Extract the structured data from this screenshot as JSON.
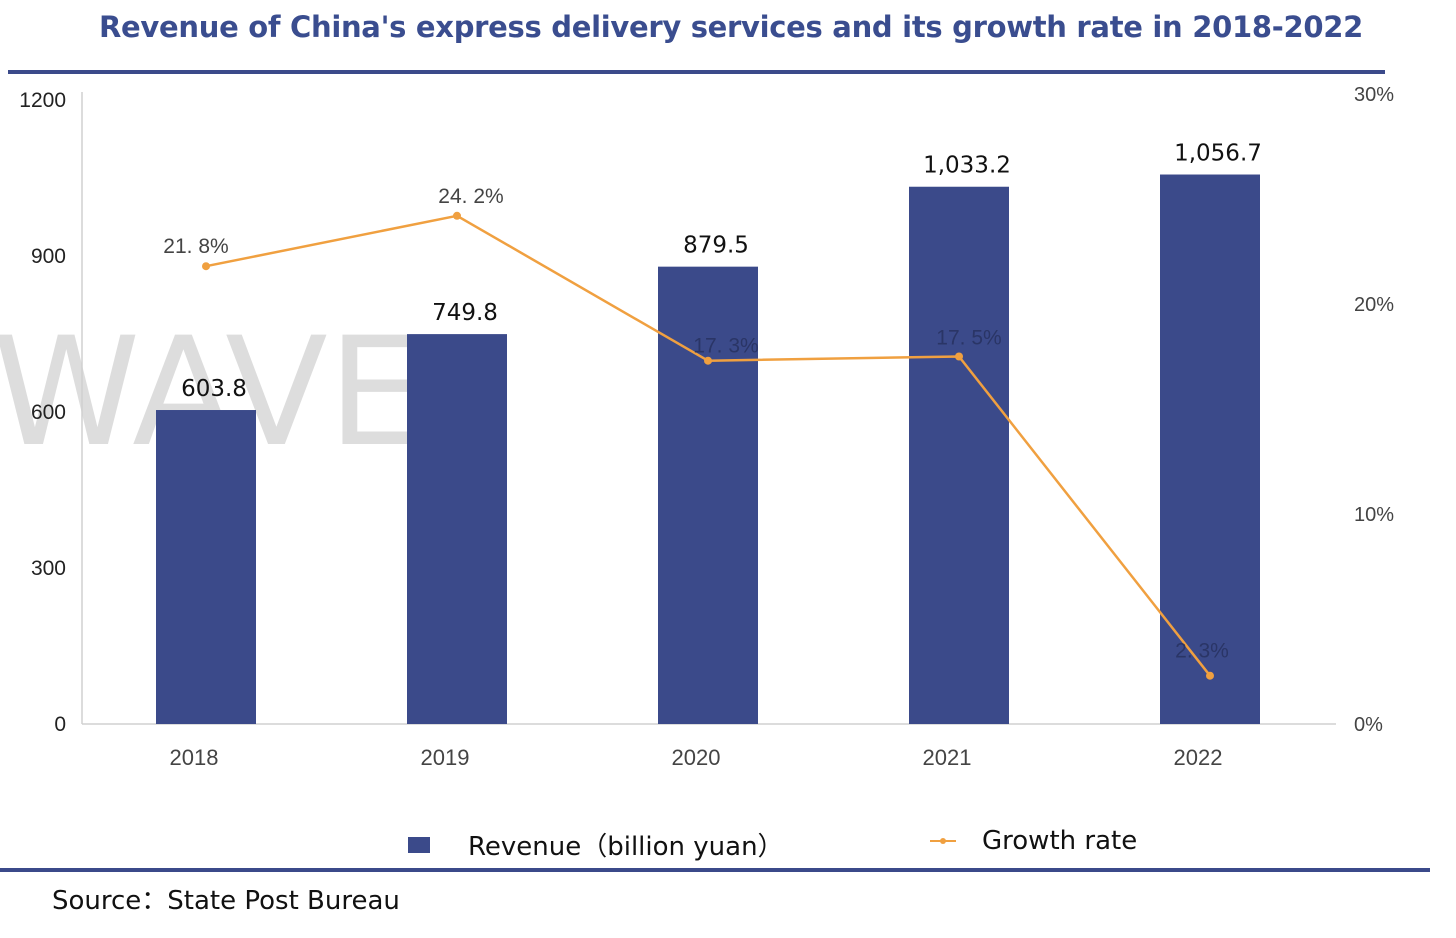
{
  "chart_data": {
    "type": "bar",
    "title": "Revenue of China's express delivery services and its growth rate in 2018-2022",
    "categories": [
      "2018",
      "2019",
      "2020",
      "2021",
      "2022"
    ],
    "series": [
      {
        "name": "Revenue（billion yuan）",
        "type": "bar",
        "axis": "left",
        "values": [
          603.8,
          749.8,
          879.5,
          1033.2,
          1056.7
        ],
        "labels": [
          "603.8",
          "749.8",
          "879.5",
          "1,033.2",
          "1,056.7"
        ],
        "color": "#3b4a8a"
      },
      {
        "name": "Growth rate",
        "type": "line",
        "axis": "right",
        "values": [
          21.8,
          24.2,
          17.3,
          17.5,
          2.3
        ],
        "labels": [
          "21. 8%",
          "24. 2%",
          "17. 3%",
          "17. 5%",
          "2. 3%"
        ],
        "color": "#f0a040"
      }
    ],
    "y_left": {
      "ylim": [
        0,
        1200
      ],
      "ticks": [
        "0",
        "300",
        "600",
        "900",
        "1200"
      ]
    },
    "y_right": {
      "ylim": [
        0,
        30
      ],
      "ticks": [
        "0%",
        "10%",
        "20%",
        "30%"
      ]
    },
    "legend_position": "bottom",
    "grid": false,
    "watermark": "WAVE",
    "source": "Source：State Post Bureau"
  }
}
